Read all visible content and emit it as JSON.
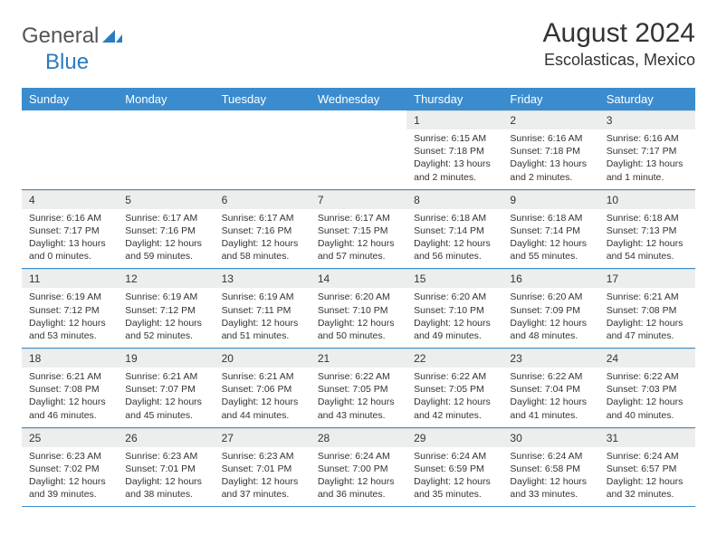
{
  "brand": {
    "name_a": "General",
    "name_b": "Blue"
  },
  "title": {
    "month": "August 2024",
    "location": "Escolasticas, Mexico"
  },
  "styling": {
    "header_bg": "#3b8ccf",
    "header_fg": "#ffffff",
    "daynum_bg": "#eceeee",
    "row_border": "#3b8ccf",
    "page_bg": "#ffffff",
    "body_font_size": 10.5,
    "header_font_size": 13,
    "title_font_size": 30,
    "location_font_size": 18
  },
  "weekdays": [
    "Sunday",
    "Monday",
    "Tuesday",
    "Wednesday",
    "Thursday",
    "Friday",
    "Saturday"
  ],
  "weeks": [
    [
      null,
      null,
      null,
      null,
      {
        "n": "1",
        "sr": "6:15 AM",
        "ss": "7:18 PM",
        "dl": "13 hours and 2 minutes."
      },
      {
        "n": "2",
        "sr": "6:16 AM",
        "ss": "7:18 PM",
        "dl": "13 hours and 2 minutes."
      },
      {
        "n": "3",
        "sr": "6:16 AM",
        "ss": "7:17 PM",
        "dl": "13 hours and 1 minute."
      }
    ],
    [
      {
        "n": "4",
        "sr": "6:16 AM",
        "ss": "7:17 PM",
        "dl": "13 hours and 0 minutes."
      },
      {
        "n": "5",
        "sr": "6:17 AM",
        "ss": "7:16 PM",
        "dl": "12 hours and 59 minutes."
      },
      {
        "n": "6",
        "sr": "6:17 AM",
        "ss": "7:16 PM",
        "dl": "12 hours and 58 minutes."
      },
      {
        "n": "7",
        "sr": "6:17 AM",
        "ss": "7:15 PM",
        "dl": "12 hours and 57 minutes."
      },
      {
        "n": "8",
        "sr": "6:18 AM",
        "ss": "7:14 PM",
        "dl": "12 hours and 56 minutes."
      },
      {
        "n": "9",
        "sr": "6:18 AM",
        "ss": "7:14 PM",
        "dl": "12 hours and 55 minutes."
      },
      {
        "n": "10",
        "sr": "6:18 AM",
        "ss": "7:13 PM",
        "dl": "12 hours and 54 minutes."
      }
    ],
    [
      {
        "n": "11",
        "sr": "6:19 AM",
        "ss": "7:12 PM",
        "dl": "12 hours and 53 minutes."
      },
      {
        "n": "12",
        "sr": "6:19 AM",
        "ss": "7:12 PM",
        "dl": "12 hours and 52 minutes."
      },
      {
        "n": "13",
        "sr": "6:19 AM",
        "ss": "7:11 PM",
        "dl": "12 hours and 51 minutes."
      },
      {
        "n": "14",
        "sr": "6:20 AM",
        "ss": "7:10 PM",
        "dl": "12 hours and 50 minutes."
      },
      {
        "n": "15",
        "sr": "6:20 AM",
        "ss": "7:10 PM",
        "dl": "12 hours and 49 minutes."
      },
      {
        "n": "16",
        "sr": "6:20 AM",
        "ss": "7:09 PM",
        "dl": "12 hours and 48 minutes."
      },
      {
        "n": "17",
        "sr": "6:21 AM",
        "ss": "7:08 PM",
        "dl": "12 hours and 47 minutes."
      }
    ],
    [
      {
        "n": "18",
        "sr": "6:21 AM",
        "ss": "7:08 PM",
        "dl": "12 hours and 46 minutes."
      },
      {
        "n": "19",
        "sr": "6:21 AM",
        "ss": "7:07 PM",
        "dl": "12 hours and 45 minutes."
      },
      {
        "n": "20",
        "sr": "6:21 AM",
        "ss": "7:06 PM",
        "dl": "12 hours and 44 minutes."
      },
      {
        "n": "21",
        "sr": "6:22 AM",
        "ss": "7:05 PM",
        "dl": "12 hours and 43 minutes."
      },
      {
        "n": "22",
        "sr": "6:22 AM",
        "ss": "7:05 PM",
        "dl": "12 hours and 42 minutes."
      },
      {
        "n": "23",
        "sr": "6:22 AM",
        "ss": "7:04 PM",
        "dl": "12 hours and 41 minutes."
      },
      {
        "n": "24",
        "sr": "6:22 AM",
        "ss": "7:03 PM",
        "dl": "12 hours and 40 minutes."
      }
    ],
    [
      {
        "n": "25",
        "sr": "6:23 AM",
        "ss": "7:02 PM",
        "dl": "12 hours and 39 minutes."
      },
      {
        "n": "26",
        "sr": "6:23 AM",
        "ss": "7:01 PM",
        "dl": "12 hours and 38 minutes."
      },
      {
        "n": "27",
        "sr": "6:23 AM",
        "ss": "7:01 PM",
        "dl": "12 hours and 37 minutes."
      },
      {
        "n": "28",
        "sr": "6:24 AM",
        "ss": "7:00 PM",
        "dl": "12 hours and 36 minutes."
      },
      {
        "n": "29",
        "sr": "6:24 AM",
        "ss": "6:59 PM",
        "dl": "12 hours and 35 minutes."
      },
      {
        "n": "30",
        "sr": "6:24 AM",
        "ss": "6:58 PM",
        "dl": "12 hours and 33 minutes."
      },
      {
        "n": "31",
        "sr": "6:24 AM",
        "ss": "6:57 PM",
        "dl": "12 hours and 32 minutes."
      }
    ]
  ],
  "labels": {
    "sunrise": "Sunrise:",
    "sunset": "Sunset:",
    "daylight": "Daylight:"
  }
}
